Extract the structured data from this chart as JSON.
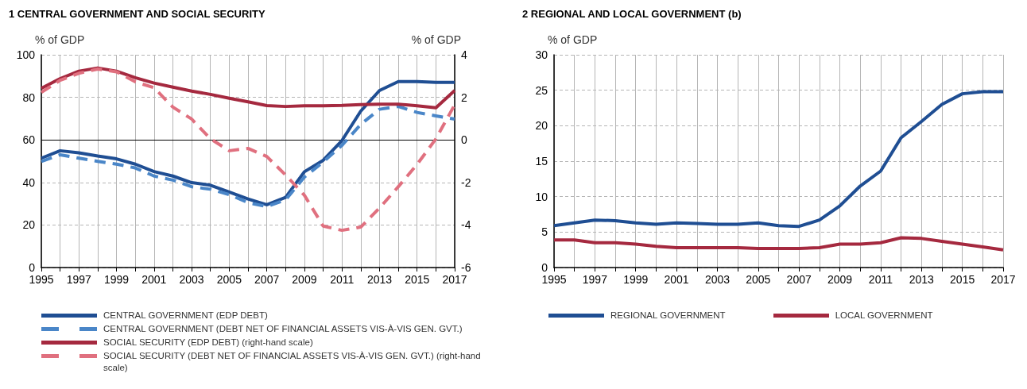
{
  "chart_data": [
    {
      "type": "line",
      "title": "1 CENTRAL GOVERNMENT AND SOCIAL SECURITY",
      "ylabel": "% of GDP",
      "y2label": "% of GDP",
      "x": [
        1995,
        1996,
        1997,
        1998,
        1999,
        2000,
        2001,
        2002,
        2003,
        2004,
        2005,
        2006,
        2007,
        2008,
        2009,
        2010,
        2011,
        2012,
        2013,
        2014,
        2015,
        2016,
        2017
      ],
      "xlim": [
        1995,
        2017
      ],
      "xticks": [
        1995,
        {
          "value": 1996,
          "label": null
        },
        1997,
        {
          "value": 1998,
          "label": null
        },
        1999,
        {
          "value": 2000,
          "label": null
        },
        2001,
        {
          "value": 2002,
          "label": null
        },
        2003,
        {
          "value": 2004,
          "label": null
        },
        2005,
        {
          "value": 2006,
          "label": null
        },
        2007,
        {
          "value": 2008,
          "label": null
        },
        2009,
        {
          "value": 2010,
          "label": null
        },
        2011,
        {
          "value": 2012,
          "label": null
        },
        2013,
        {
          "value": 2014,
          "label": null
        },
        2015,
        {
          "value": 2016,
          "label": null
        },
        2017
      ],
      "ylim": [
        0,
        100
      ],
      "yticks": [
        0,
        20,
        40,
        60,
        80,
        100
      ],
      "y2lim": [
        -6,
        4
      ],
      "y2ticks": [
        -6,
        -4,
        -2,
        0,
        2,
        4
      ],
      "grid": true,
      "legend": "bottom",
      "marker": "none",
      "ref_lines": [
        {
          "axis": "y2",
          "value": 0,
          "color": "#000000"
        }
      ],
      "series": [
        {
          "name": "CENTRAL GOVERNMENT (EDP DEBT)",
          "color": "#1f4e93",
          "line_style": "solid",
          "values": [
            51.4,
            54.9,
            53.9,
            52.4,
            51.1,
            48.6,
            45.1,
            43,
            39.9,
            38.7,
            35.5,
            32.2,
            29.5,
            33,
            45,
            50.4,
            59.7,
            73.5,
            83.2,
            87.4,
            87.4,
            87,
            87
          ]
        },
        {
          "name": "CENTRAL GOVERNMENT (DEBT NET OF FINANCIAL ASSETS VIS-À-VIS GEN. GVT.)",
          "color": "#4a86c8",
          "line_style": "dashed",
          "values": [
            49.9,
            53,
            51.4,
            49.9,
            48.6,
            46.8,
            43,
            41.1,
            38,
            36.8,
            34.3,
            30.5,
            28.7,
            31.8,
            42.5,
            49.6,
            57.4,
            67.3,
            74.4,
            75.7,
            72.9,
            71.3,
            69.8
          ]
        },
        {
          "name": "SOCIAL SECURITY (EDP DEBT) (right-hand scale)",
          "color": "#a5293f",
          "line_style": "solid",
          "axis": "y2",
          "values": [
            2.42,
            2.88,
            3.23,
            3.38,
            3.23,
            2.92,
            2.67,
            2.48,
            2.29,
            2.14,
            1.96,
            1.79,
            1.61,
            1.57,
            1.6,
            1.6,
            1.62,
            1.66,
            1.68,
            1.68,
            1.6,
            1.51,
            2.32
          ]
        },
        {
          "name": "SOCIAL SECURITY (DEBT NET OF FINANCIAL ASSETS VIS-À-VIS GEN. GVT.) (right-hand scale)",
          "color": "#e0707f",
          "line_style": "dashed",
          "axis": "y2",
          "values": [
            2.23,
            2.8,
            3.13,
            3.33,
            3.2,
            2.73,
            2.45,
            1.54,
            0.98,
            0.05,
            -0.51,
            -0.4,
            -0.78,
            -1.65,
            -2.6,
            -4.05,
            -4.25,
            -4.1,
            -3.2,
            -2.2,
            -1.15,
            0.05,
            1.65
          ]
        }
      ]
    },
    {
      "type": "line",
      "title": "2 REGIONAL AND LOCAL GOVERNMENT (b)",
      "ylabel": "% of GDP",
      "x": [
        1995,
        1996,
        1997,
        1998,
        1999,
        2000,
        2001,
        2002,
        2003,
        2004,
        2005,
        2006,
        2007,
        2008,
        2009,
        2010,
        2011,
        2012,
        2013,
        2014,
        2015,
        2016,
        2017
      ],
      "xlim": [
        1995,
        2017
      ],
      "xticks": [
        1995,
        {
          "value": 1996,
          "label": null
        },
        1997,
        {
          "value": 1998,
          "label": null
        },
        1999,
        {
          "value": 2000,
          "label": null
        },
        2001,
        {
          "value": 2002,
          "label": null
        },
        2003,
        {
          "value": 2004,
          "label": null
        },
        2005,
        {
          "value": 2006,
          "label": null
        },
        2007,
        {
          "value": 2008,
          "label": null
        },
        2009,
        {
          "value": 2010,
          "label": null
        },
        2011,
        {
          "value": 2012,
          "label": null
        },
        2013,
        {
          "value": 2014,
          "label": null
        },
        2015,
        {
          "value": 2016,
          "label": null
        },
        2017
      ],
      "ylim": [
        0,
        30
      ],
      "yticks": [
        0,
        5,
        10,
        15,
        20,
        25,
        30
      ],
      "grid": true,
      "legend": "bottom",
      "marker": "none",
      "series": [
        {
          "name": "REGIONAL GOVERNMENT",
          "color": "#1f4e93",
          "line_style": "solid",
          "values": [
            5.9,
            6.3,
            6.7,
            6.6,
            6.3,
            6.1,
            6.3,
            6.2,
            6.1,
            6.1,
            6.3,
            5.9,
            5.8,
            6.7,
            8.7,
            11.5,
            13.6,
            18.3,
            20.6,
            23,
            24.5,
            24.8,
            24.8
          ]
        },
        {
          "name": "LOCAL GOVERNMENT",
          "color": "#a5293f",
          "line_style": "solid",
          "values": [
            3.9,
            3.9,
            3.5,
            3.5,
            3.3,
            3,
            2.8,
            2.8,
            2.8,
            2.8,
            2.7,
            2.7,
            2.7,
            2.8,
            3.3,
            3.3,
            3.5,
            4.2,
            4.1,
            3.7,
            3.3,
            2.9,
            2.5
          ]
        }
      ]
    }
  ]
}
